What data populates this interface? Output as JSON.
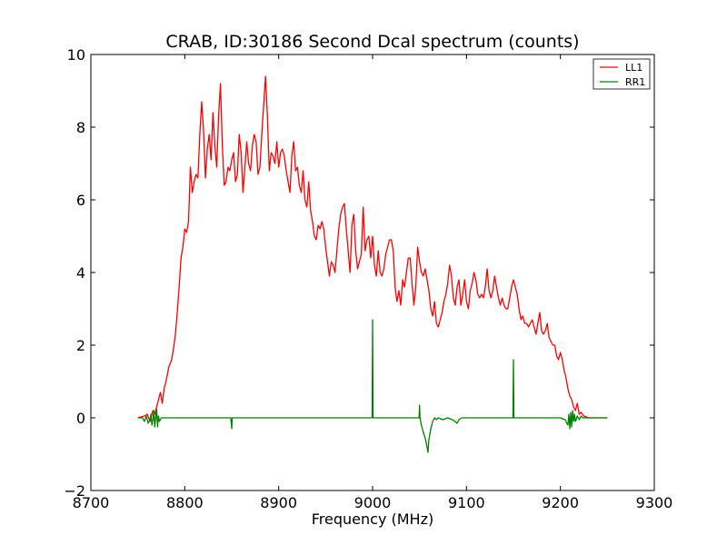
{
  "chart_data": {
    "type": "line",
    "title": "CRAB, ID:30186 Second Dcal spectrum (counts)",
    "xlabel": "Frequency (MHz)",
    "ylabel": "",
    "xlim": [
      8700,
      9300
    ],
    "ylim": [
      -2,
      10
    ],
    "xticks": [
      8700,
      8800,
      8900,
      9000,
      9100,
      9200,
      9300
    ],
    "yticks": [
      -2,
      0,
      2,
      4,
      6,
      8,
      10
    ],
    "xtick_labels": [
      "8700",
      "8800",
      "8900",
      "9000",
      "9100",
      "9200",
      "9300"
    ],
    "ytick_labels": [
      "−2",
      "0",
      "2",
      "4",
      "6",
      "8",
      "10"
    ],
    "grid": false,
    "legend_position": "top-right",
    "series": [
      {
        "name": "LL1",
        "color": "#ff0000",
        "x": [
          8750,
          8757,
          8760,
          8763,
          8766,
          8768,
          8770,
          8772,
          8774,
          8776,
          8778,
          8780,
          8783,
          8786,
          8788,
          8790,
          8792,
          8794,
          8796,
          8798,
          8800,
          8802,
          8804,
          8806,
          8808,
          8810,
          8812,
          8814,
          8816,
          8818,
          8820,
          8822,
          8824,
          8826,
          8828,
          8830,
          8832,
          8834,
          8836,
          8838,
          8840,
          8842,
          8844,
          8846,
          8848,
          8850,
          8852,
          8854,
          8856,
          8858,
          8860,
          8862,
          8864,
          8866,
          8868,
          8870,
          8872,
          8874,
          8876,
          8878,
          8880,
          8882,
          8884,
          8886,
          8888,
          8890,
          8892,
          8894,
          8896,
          8898,
          8900,
          8902,
          8904,
          8906,
          8908,
          8910,
          8912,
          8914,
          8916,
          8918,
          8920,
          8922,
          8924,
          8926,
          8928,
          8930,
          8932,
          8934,
          8936,
          8938,
          8940,
          8942,
          8944,
          8946,
          8948,
          8950,
          8952,
          8954,
          8956,
          8958,
          8960,
          8962,
          8964,
          8966,
          8968,
          8970,
          8972,
          8974,
          8976,
          8978,
          8980,
          8982,
          8984,
          8986,
          8988,
          8990,
          8992,
          8994,
          8996,
          8998,
          9000,
          9002,
          9004,
          9006,
          9008,
          9010,
          9012,
          9014,
          9016,
          9018,
          9020,
          9022,
          9024,
          9026,
          9028,
          9030,
          9032,
          9034,
          9036,
          9038,
          9040,
          9042,
          9044,
          9046,
          9048,
          9050,
          9052,
          9054,
          9056,
          9058,
          9060,
          9062,
          9064,
          9066,
          9068,
          9070,
          9072,
          9074,
          9076,
          9078,
          9080,
          9082,
          9084,
          9086,
          9088,
          9090,
          9092,
          9094,
          9096,
          9098,
          9100,
          9102,
          9104,
          9106,
          9108,
          9110,
          9112,
          9114,
          9116,
          9118,
          9120,
          9122,
          9124,
          9126,
          9128,
          9130,
          9132,
          9134,
          9136,
          9138,
          9140,
          9142,
          9144,
          9146,
          9148,
          9150,
          9152,
          9154,
          9156,
          9158,
          9160,
          9162,
          9164,
          9166,
          9168,
          9170,
          9172,
          9174,
          9176,
          9178,
          9180,
          9182,
          9184,
          9186,
          9188,
          9190,
          9192,
          9194,
          9196,
          9198,
          9200,
          9202,
          9204,
          9206,
          9208,
          9210,
          9212,
          9214,
          9216,
          9218,
          9220,
          9222,
          9225,
          9230,
          9240,
          9250
        ],
        "y": [
          0.0,
          0.05,
          0.1,
          -0.1,
          0.2,
          0.1,
          0.3,
          0.5,
          0.7,
          0.4,
          0.8,
          1.0,
          1.4,
          1.6,
          1.9,
          2.3,
          2.9,
          3.6,
          4.4,
          4.7,
          5.2,
          5.1,
          5.4,
          6.9,
          6.2,
          6.5,
          6.7,
          6.6,
          7.8,
          8.7,
          7.9,
          6.6,
          7.4,
          7.8,
          7.1,
          8.4,
          7.5,
          6.9,
          8.3,
          9.2,
          7.5,
          6.4,
          6.5,
          6.9,
          6.8,
          7.1,
          7.3,
          6.5,
          6.7,
          7.8,
          7.3,
          6.2,
          6.9,
          7.6,
          7.0,
          6.8,
          7.5,
          7.8,
          7.6,
          6.7,
          6.9,
          7.8,
          8.6,
          9.4,
          8.3,
          6.8,
          7.3,
          7.2,
          7.0,
          7.6,
          6.9,
          7.3,
          7.4,
          7.2,
          6.8,
          6.5,
          6.2,
          7.2,
          7.6,
          6.8,
          6.9,
          6.4,
          6.2,
          6.8,
          6.0,
          5.8,
          6.5,
          5.7,
          5.4,
          5.0,
          4.9,
          5.3,
          5.2,
          5.4,
          5.2,
          4.7,
          4.3,
          3.9,
          4.3,
          4.2,
          4.0,
          4.6,
          5.2,
          5.6,
          5.8,
          5.9,
          5.2,
          4.6,
          4.0,
          5.3,
          5.6,
          4.6,
          4.1,
          4.3,
          4.5,
          5.8,
          4.6,
          4.9,
          5.0,
          4.4,
          5.0,
          4.2,
          3.9,
          4.6,
          4.0,
          3.9,
          4.1,
          4.5,
          4.7,
          4.9,
          4.9,
          4.6,
          3.6,
          3.2,
          3.5,
          3.1,
          3.8,
          3.6,
          4.0,
          4.4,
          4.4,
          3.7,
          3.1,
          3.6,
          4.7,
          4.3,
          4.0,
          3.9,
          4.1,
          3.8,
          3.5,
          3.0,
          2.8,
          3.2,
          2.6,
          2.5,
          2.7,
          2.9,
          3.2,
          3.4,
          3.7,
          4.2,
          3.9,
          3.3,
          3.1,
          3.6,
          3.8,
          3.1,
          3.4,
          3.8,
          3.2,
          3.0,
          3.5,
          3.7,
          4.0,
          3.8,
          3.4,
          3.3,
          3.4,
          3.3,
          3.6,
          4.1,
          3.5,
          3.3,
          3.5,
          3.9,
          3.6,
          3.3,
          3.1,
          3.3,
          3.1,
          3.0,
          3.0,
          3.3,
          3.6,
          3.8,
          3.6,
          3.4,
          3.0,
          2.7,
          2.8,
          2.6,
          2.6,
          2.5,
          2.6,
          2.7,
          2.5,
          2.3,
          2.6,
          2.9,
          2.4,
          2.3,
          2.4,
          2.6,
          2.2,
          2.1,
          2.0,
          2.0,
          1.7,
          1.6,
          1.8,
          1.6,
          1.3,
          1.1,
          0.8,
          0.6,
          0.5,
          0.3,
          0.2,
          0.4,
          0.1,
          0.15,
          0.05,
          0.0,
          0.0,
          0.0
        ]
      },
      {
        "name": "RR1",
        "color": "#008000",
        "x": [
          8750,
          8755,
          8757,
          8759,
          8761,
          8763,
          8764,
          8765,
          8766,
          8767,
          8768,
          8769,
          8770,
          8771,
          8772,
          8773,
          8775,
          8780,
          8800,
          8820,
          8840,
          8849,
          8850,
          8850.5,
          8851,
          8870,
          8900,
          8950,
          8999.5,
          9000,
          9000.5,
          9001,
          9020,
          9040,
          9049.5,
          9050,
          9050.5,
          9052,
          9054,
          9056,
          9058,
          9059,
          9060,
          9062,
          9064,
          9066,
          9068,
          9070,
          9075,
          9080,
          9085,
          9088,
          9090,
          9092,
          9095,
          9100,
          9120,
          9149.5,
          9150,
          9150.5,
          9151,
          9170,
          9190,
          9200,
          9205,
          9208,
          9209,
          9210,
          9211,
          9212,
          9213,
          9214,
          9215,
          9216,
          9218,
          9220,
          9222,
          9224,
          9226,
          9230,
          9240,
          9250
        ],
        "y": [
          0.0,
          0.0,
          -0.1,
          0.05,
          -0.15,
          -0.05,
          0.1,
          -0.2,
          -0.05,
          0.2,
          -0.25,
          0.0,
          0.25,
          -0.25,
          0.05,
          -0.1,
          0.0,
          0.0,
          0.0,
          0.0,
          0.0,
          0.0,
          -0.3,
          0.0,
          0.0,
          0.0,
          0.0,
          0.0,
          0.0,
          2.7,
          0.0,
          0.0,
          0.0,
          0.0,
          0.0,
          0.35,
          0.0,
          -0.2,
          -0.4,
          -0.55,
          -0.8,
          -0.95,
          -0.6,
          -0.3,
          -0.1,
          0.0,
          -0.05,
          0.0,
          -0.05,
          0.0,
          -0.05,
          -0.1,
          -0.15,
          -0.05,
          0.0,
          0.0,
          0.0,
          0.0,
          1.6,
          0.0,
          0.0,
          0.0,
          0.0,
          0.0,
          -0.05,
          -0.2,
          0.1,
          -0.3,
          0.15,
          -0.25,
          0.2,
          -0.1,
          0.1,
          -0.1,
          0.05,
          -0.05,
          0.05,
          0.0,
          0.0,
          0.0,
          0.0,
          0.0
        ]
      }
    ]
  }
}
